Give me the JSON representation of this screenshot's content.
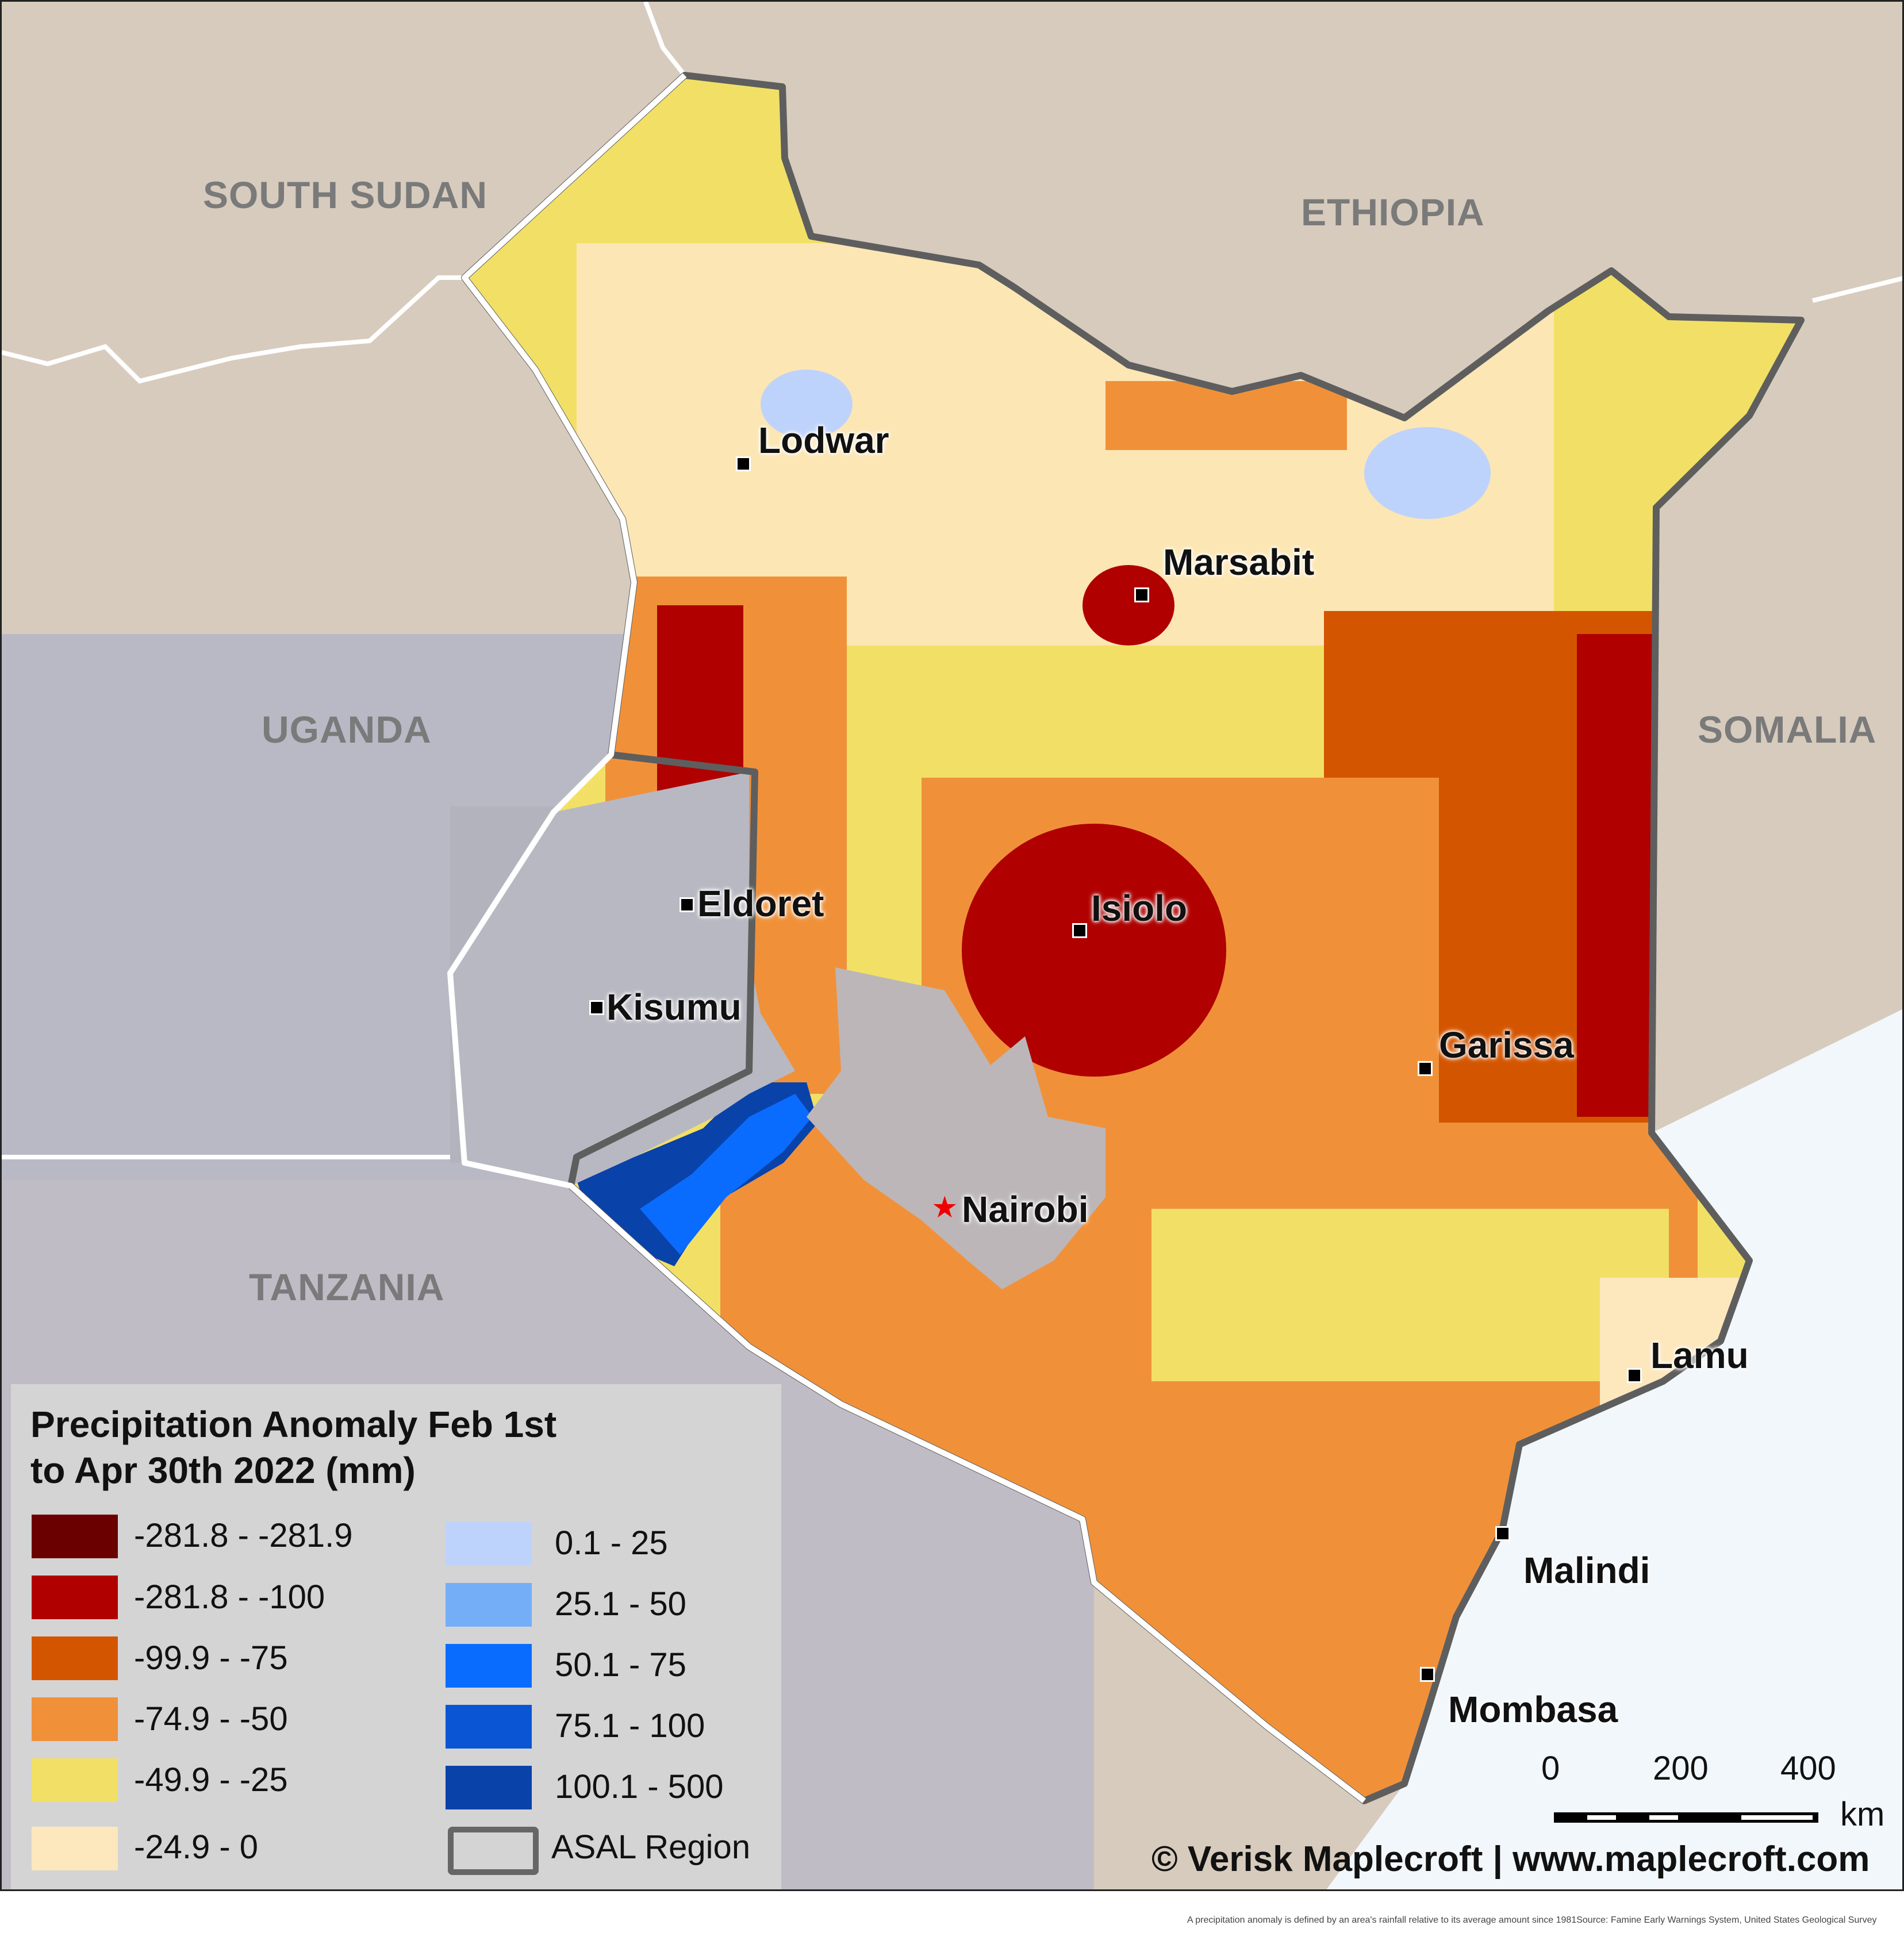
{
  "map": {
    "countries": [
      "SOUTH SUDAN",
      "ETHIOPIA",
      "UGANDA",
      "SOMALIA",
      "TANZANIA"
    ],
    "cities": {
      "lodwar": "Lodwar",
      "marsabit": "Marsabit",
      "eldoret": "Eldoret",
      "isiolo": "Isiolo",
      "kisumu": "Kisumu",
      "garissa": "Garissa",
      "nairobi": "Nairobi",
      "lamu": "Lamu",
      "malindi": "Malindi",
      "mombasa": "Mombasa"
    }
  },
  "legend": {
    "title": "Precipitation Anomaly Feb 1st\n to Apr 30th 2022 (mm)",
    "classes": [
      {
        "label": "-281.8 - -281.9",
        "color": "#6b0000"
      },
      {
        "label": "-281.8 - -100",
        "color": "#b00000"
      },
      {
        "label": "-99.9 - -75",
        "color": "#d45500"
      },
      {
        "label": "-74.9 - -50",
        "color": "#f0913a"
      },
      {
        "label": "-49.9 - -25",
        "color": "#f2e066"
      },
      {
        "label": "-24.9 - 0",
        "color": "#fde7bd"
      },
      {
        "label": "0.1 - 25",
        "color": "#bed3fb"
      },
      {
        "label": "25.1 - 50",
        "color": "#74aef7"
      },
      {
        "label": "50.1 - 75",
        "color": "#0a6cff"
      },
      {
        "label": "75.1 - 100",
        "color": "#0a55d4"
      },
      {
        "label": "100.1 - 500",
        "color": "#0942a8"
      }
    ],
    "asal_label": "ASAL Region"
  },
  "scale": {
    "ticks": [
      "0",
      "200",
      "400"
    ],
    "unit": "km"
  },
  "credits": {
    "copyright": "© Verisk Maplecroft  | www.maplecroft.com",
    "footnote": "A precipitation anomaly is defined by an area's rainfall relative to its average amount since 1981Source: Famine Early Warnings System, United States Geological Survey"
  }
}
